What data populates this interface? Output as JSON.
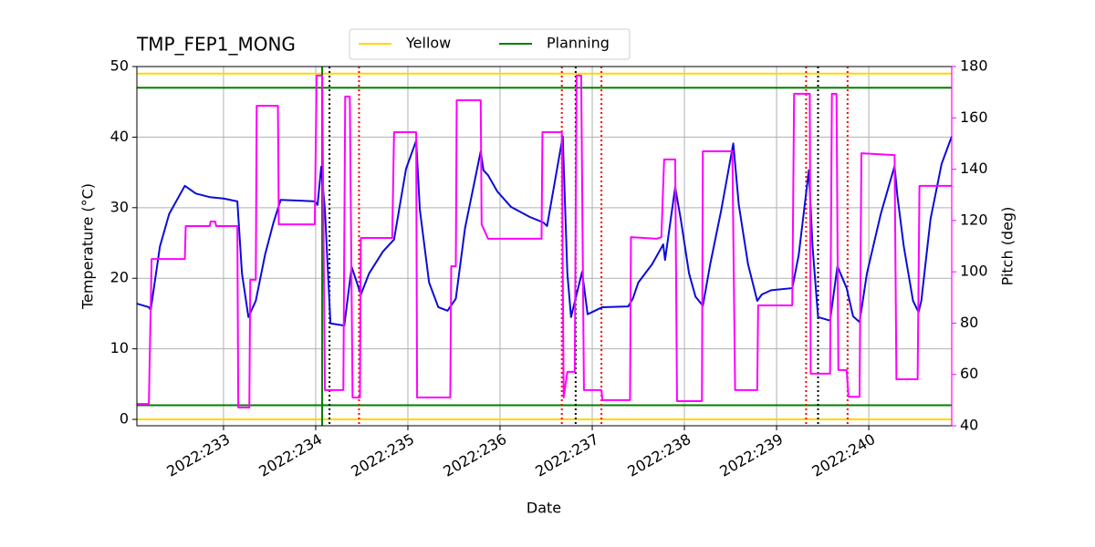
{
  "chart_data": {
    "type": "line",
    "title": "TMP_FEP1_MONG",
    "xlabel": "Date",
    "ylabel": "Temperature (°C)",
    "y2label": "Pitch (deg)",
    "y2color": "#ff00ff",
    "grid": true,
    "legend": "upper center",
    "xlim": [
      232.06,
      240.9
    ],
    "xticks": [
      {
        "value": 233,
        "label": "2022:233"
      },
      {
        "value": 234,
        "label": "2022:234"
      },
      {
        "value": 235,
        "label": "2022:235"
      },
      {
        "value": 236,
        "label": "2022:236"
      },
      {
        "value": 237,
        "label": "2022:237"
      },
      {
        "value": 238,
        "label": "2022:238"
      },
      {
        "value": 239,
        "label": "2022:239"
      },
      {
        "value": 240,
        "label": "2022:240"
      }
    ],
    "ylim": [
      -0.9,
      50
    ],
    "yticks": [
      0,
      10,
      20,
      30,
      40,
      50
    ],
    "y2lim": [
      40,
      180
    ],
    "y2ticks": [
      40,
      60,
      80,
      100,
      120,
      140,
      160,
      180
    ],
    "series": [
      {
        "color": "#0b0bdb",
        "x": [
          232.06,
          232.19,
          232.21,
          232.31,
          232.41,
          232.58,
          232.7,
          232.85,
          233.0,
          233.15,
          233.2,
          233.27,
          233.35,
          233.45,
          233.54,
          233.62,
          233.84,
          233.99,
          234.02,
          234.06,
          234.1,
          234.16,
          234.31,
          234.39,
          234.49,
          234.58,
          234.73,
          234.85,
          234.98,
          235.09,
          235.13,
          235.23,
          235.33,
          235.43,
          235.52,
          235.62,
          235.79,
          235.82,
          235.87,
          235.97,
          236.12,
          236.32,
          236.47,
          236.51,
          236.68,
          236.73,
          236.77,
          236.89,
          236.95,
          237.11,
          237.39,
          237.44,
          237.5,
          237.65,
          237.77,
          237.79,
          237.9,
          237.96,
          238.05,
          238.12,
          238.2,
          238.28,
          238.4,
          238.53,
          238.59,
          238.69,
          238.79,
          238.84,
          238.94,
          239.17,
          239.24,
          239.35,
          239.39,
          239.45,
          239.58,
          239.66,
          239.76,
          239.83,
          239.9,
          239.98,
          240.13,
          240.28,
          240.31,
          240.38,
          240.48,
          240.54,
          240.57,
          240.67,
          240.79,
          240.9
        ],
        "values": [
          16.4,
          15.9,
          15.5,
          24.5,
          29.1,
          33.1,
          32.0,
          31.5,
          31.3,
          30.9,
          20.7,
          14.5,
          16.8,
          23.3,
          27.8,
          31.1,
          31.0,
          30.9,
          30.4,
          35.8,
          29.7,
          13.6,
          13.3,
          21.6,
          17.7,
          20.7,
          23.8,
          25.5,
          35.5,
          39.5,
          29.7,
          19.4,
          15.9,
          15.4,
          17.1,
          27.1,
          38.0,
          35.3,
          34.6,
          32.3,
          30.1,
          28.7,
          27.9,
          27.4,
          40.1,
          20.7,
          14.5,
          20.9,
          14.9,
          15.9,
          16.0,
          17.1,
          19.4,
          22.0,
          24.8,
          22.6,
          32.9,
          28.4,
          20.7,
          17.4,
          16.1,
          22.0,
          29.7,
          39.1,
          30.4,
          22.0,
          16.8,
          17.7,
          18.3,
          18.6,
          23.3,
          35.3,
          24.5,
          14.5,
          14.0,
          21.7,
          18.6,
          14.6,
          13.8,
          20.7,
          29.1,
          35.9,
          31.7,
          24.5,
          16.8,
          15.2,
          16.8,
          28.4,
          36.2,
          40.1
        ]
      },
      {
        "color": "#ff00ff",
        "axis": "y2",
        "x": [
          232.06,
          232.19,
          232.22,
          232.58,
          232.59,
          232.85,
          232.86,
          232.91,
          232.92,
          233.15,
          233.16,
          233.28,
          233.29,
          233.35,
          233.36,
          233.59,
          233.6,
          233.99,
          234.01,
          234.07,
          234.1,
          234.3,
          234.32,
          234.37,
          234.4,
          234.48,
          234.49,
          234.83,
          234.85,
          235.09,
          235.1,
          235.46,
          235.47,
          235.52,
          235.53,
          235.79,
          235.8,
          235.87,
          236.45,
          236.46,
          236.67,
          236.69,
          236.73,
          236.81,
          236.83,
          236.88,
          236.91,
          237.1,
          237.11,
          237.41,
          237.42,
          237.7,
          237.75,
          237.78,
          237.9,
          237.92,
          238.19,
          238.2,
          238.52,
          238.55,
          238.79,
          238.8,
          239.17,
          239.19,
          239.36,
          239.37,
          239.58,
          239.6,
          239.65,
          239.67,
          239.76,
          239.78,
          239.9,
          239.92,
          240.28,
          240.3,
          240.53,
          240.55,
          240.9
        ],
        "values": [
          48.5,
          48.5,
          105.0,
          105.0,
          117.8,
          117.8,
          119.6,
          119.6,
          117.8,
          117.8,
          47.1,
          47.1,
          96.9,
          96.9,
          164.7,
          164.7,
          118.5,
          118.5,
          176.5,
          176.5,
          53.9,
          53.9,
          168.3,
          168.3,
          51.0,
          51.0,
          113.2,
          113.2,
          154.4,
          154.4,
          51.0,
          51.0,
          102.2,
          102.2,
          166.9,
          166.9,
          118.5,
          112.9,
          112.9,
          154.4,
          154.4,
          51.0,
          61.0,
          61.0,
          176.5,
          176.5,
          53.9,
          53.9,
          50.0,
          50.0,
          113.5,
          112.9,
          113.5,
          143.8,
          143.8,
          49.6,
          49.6,
          147.0,
          147.0,
          53.9,
          53.9,
          86.9,
          86.9,
          169.4,
          169.4,
          60.3,
          60.3,
          169.4,
          169.4,
          61.7,
          61.7,
          51.3,
          51.3,
          146.2,
          145.5,
          58.1,
          58.1,
          133.5,
          133.5
        ]
      }
    ],
    "hlines": [
      {
        "name": "Yellow",
        "color": "#ffd700",
        "values": [
          49,
          0
        ]
      },
      {
        "name": "Planning",
        "color": "#008000",
        "values": [
          47,
          2
        ]
      }
    ],
    "vlines": [
      {
        "color": "#008000",
        "style": "solid",
        "x": [
          234.07
        ]
      },
      {
        "color": "#000000",
        "style": "dotted",
        "x": [
          234.15,
          236.82,
          239.45
        ]
      },
      {
        "color": "#ff0000",
        "style": "dotted",
        "x": [
          234.47,
          236.67,
          237.1,
          239.32,
          239.77
        ]
      }
    ]
  }
}
